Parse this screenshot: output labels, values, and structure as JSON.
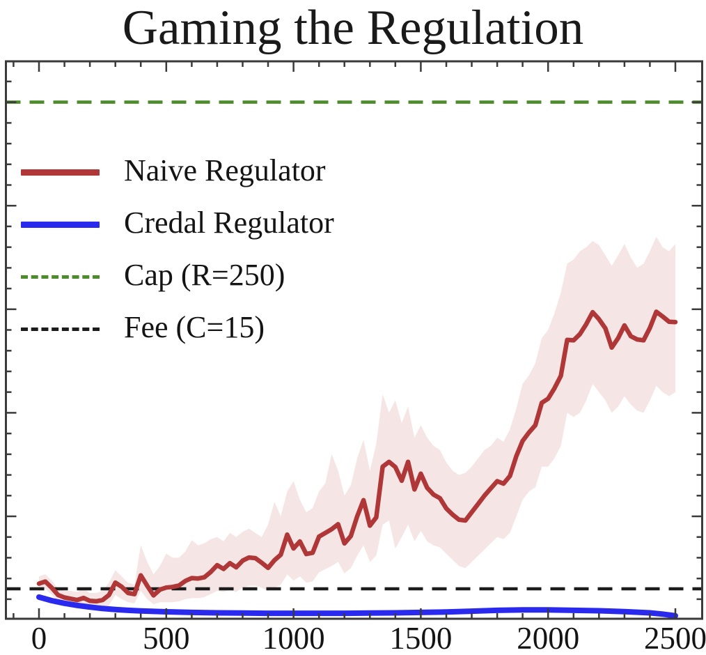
{
  "chart_data": {
    "type": "line",
    "title": "Gaming the Regulation",
    "xlabel": "",
    "ylabel": "",
    "x_range": [
      0,
      2500
    ],
    "y_range": [
      0,
      270
    ],
    "grid": false,
    "legend_position": "upper-left",
    "x_ticks": {
      "major": [
        0,
        500,
        1000,
        1500,
        2000,
        2500
      ],
      "labels": [
        "0",
        "500",
        "1000",
        "1500",
        "2000",
        "2500"
      ],
      "minor_step": 100
    },
    "y_ticks": {
      "major_step": 50,
      "minor_step": 10,
      "labels_visible": false
    },
    "colors": {
      "naive": "#b03737",
      "credal": "#2a2aee",
      "cap": "#4d8c2b",
      "fee": "#1c1c1c",
      "band_fill": "#b03737",
      "band_opacity": 0.13,
      "axis": "#3a3a3a",
      "text": "#141414"
    },
    "reference_lines": [
      {
        "name": "cap",
        "label": "Cap (R=250)",
        "value": 250,
        "style": "dashed",
        "color": "#4d8c2b"
      },
      {
        "name": "fee",
        "label": "Fee (C=15)",
        "value": 15,
        "style": "dashed",
        "color": "#1c1c1c"
      }
    ],
    "series": [
      {
        "name": "Naive Regulator",
        "color": "#b03737",
        "x": [
          0,
          25,
          50,
          75,
          100,
          125,
          150,
          175,
          200,
          225,
          250,
          275,
          300,
          325,
          350,
          375,
          400,
          425,
          450,
          475,
          500,
          525,
          550,
          575,
          600,
          625,
          650,
          675,
          700,
          725,
          750,
          775,
          800,
          825,
          850,
          875,
          900,
          925,
          950,
          975,
          1000,
          1025,
          1050,
          1075,
          1100,
          1125,
          1150,
          1175,
          1200,
          1225,
          1250,
          1275,
          1300,
          1325,
          1350,
          1375,
          1400,
          1425,
          1450,
          1475,
          1500,
          1525,
          1550,
          1575,
          1600,
          1625,
          1650,
          1675,
          1700,
          1725,
          1750,
          1775,
          1800,
          1825,
          1850,
          1875,
          1900,
          1925,
          1950,
          1975,
          2000,
          2025,
          2050,
          2075,
          2100,
          2125,
          2150,
          2175,
          2200,
          2225,
          2250,
          2275,
          2300,
          2325,
          2350,
          2375,
          2400,
          2425,
          2450,
          2475,
          2500
        ],
        "values": [
          17.5,
          18.5,
          15.5,
          12,
          10.8,
          10.2,
          9.6,
          10.6,
          9.2,
          9,
          9.6,
          12,
          18,
          16,
          13,
          12.4,
          21.5,
          16.5,
          11.8,
          14.6,
          15.6,
          15.9,
          16.6,
          18.8,
          20.2,
          20,
          20.6,
          23.2,
          26.4,
          24.6,
          27.4,
          25.4,
          28.6,
          30.1,
          29.8,
          27.6,
          25.1,
          28.8,
          31.5,
          41.2,
          34.5,
          37.9,
          31.8,
          32.4,
          40.2,
          42,
          43.8,
          46.2,
          36.9,
          40.5,
          50,
          57.8,
          45.5,
          49.5,
          74,
          76.3,
          73.8,
          67.2,
          76.3,
          63,
          70.6,
          63.8,
          60.5,
          58.8,
          53.8,
          50.8,
          48.4,
          48,
          52,
          56,
          60,
          63.5,
          67,
          65.8,
          69.5,
          79,
          86.4,
          90.5,
          94,
          104.8,
          106.8,
          111.8,
          117.8,
          135.2,
          135,
          138,
          142.8,
          148.6,
          145.2,
          140.8,
          131.5,
          136,
          142.2,
          137,
          135.4,
          135,
          141,
          148.8,
          146.5,
          144,
          143.8
        ],
        "band_upper": [
          21,
          22,
          19,
          15,
          14,
          14,
          13.5,
          15,
          13,
          13,
          14,
          18,
          24,
          21,
          18,
          17,
          36,
          28,
          22,
          26,
          32,
          30,
          30,
          33,
          38.5,
          36,
          37,
          39,
          40,
          38,
          42,
          40,
          42.5,
          44,
          42,
          40,
          46,
          57,
          50,
          62,
          67,
          58,
          52,
          54,
          62,
          66,
          80,
          72,
          60,
          65,
          78,
          87,
          72,
          85,
          109,
          100,
          106,
          95,
          103,
          88,
          94,
          88,
          84,
          82,
          76,
          72,
          70,
          71,
          74,
          78,
          82,
          84,
          88,
          86,
          92,
          102,
          114,
          118,
          124,
          136,
          140,
          148,
          158,
          172,
          174,
          178,
          180,
          183,
          181,
          176,
          171,
          176,
          181.5,
          175,
          170,
          172,
          178,
          185,
          180,
          178,
          181.5
        ],
        "band_lower": [
          14,
          15,
          12,
          9,
          7.5,
          7,
          6.5,
          7,
          6,
          5.5,
          5.5,
          7,
          12,
          10,
          8.5,
          8,
          14,
          10,
          7.5,
          8.5,
          8.5,
          8.5,
          9,
          10,
          10.5,
          10.5,
          11,
          12.5,
          14,
          13.5,
          14.5,
          13.5,
          15.5,
          16.5,
          16.5,
          15.5,
          14,
          15.5,
          17,
          22,
          19,
          21,
          18,
          18.5,
          23,
          24.5,
          26,
          28,
          22.5,
          25,
          31,
          36,
          28,
          31,
          46,
          48,
          34.5,
          40,
          46,
          38,
          43,
          38,
          36,
          35,
          32,
          29,
          26,
          25,
          28,
          31,
          34,
          37,
          40,
          39,
          42,
          50,
          58,
          62,
          64,
          74,
          74,
          78,
          84,
          100,
          98,
          100,
          106,
          114,
          110,
          106,
          100,
          103,
          108,
          104,
          101,
          100,
          106,
          113,
          110,
          108,
          110
        ]
      },
      {
        "name": "Credal Regulator",
        "color": "#2a2aee",
        "x": [
          0,
          50,
          100,
          150,
          200,
          250,
          300,
          350,
          400,
          450,
          500,
          600,
          700,
          800,
          900,
          1000,
          1100,
          1200,
          1300,
          1400,
          1500,
          1600,
          1700,
          1800,
          1900,
          2000,
          2100,
          2200,
          2300,
          2400,
          2450,
          2500
        ],
        "values": [
          11,
          9.3,
          8,
          7,
          6.2,
          5.5,
          5,
          4.6,
          4.3,
          4.1,
          3.9,
          3.6,
          3.4,
          3.3,
          3.2,
          3.2,
          3.2,
          3.2,
          3.3,
          3.4,
          3.6,
          3.8,
          4.2,
          4.6,
          4.8,
          4.8,
          4.6,
          4.4,
          4,
          3.4,
          2.8,
          2
        ]
      }
    ]
  },
  "legend": {
    "items": [
      {
        "label": "Naive Regulator",
        "swatch": "solid"
      },
      {
        "label": "Credal Regulator",
        "swatch": "solid"
      },
      {
        "label": "Cap (R=250)",
        "swatch": "dashed"
      },
      {
        "label": "Fee (C=15)",
        "swatch": "dashed"
      }
    ]
  }
}
